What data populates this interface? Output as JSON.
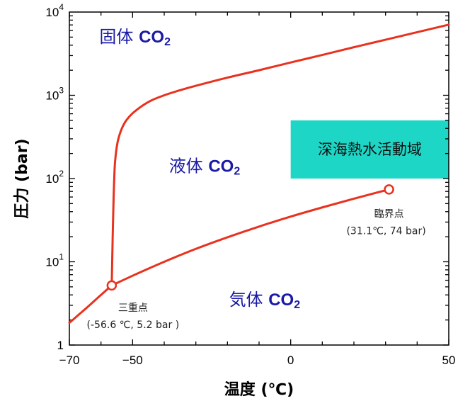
{
  "chart_data": {
    "type": "line",
    "xlabel": "温度 (℃)",
    "ylabel": "圧力 (bar)",
    "xlim": [
      -70,
      50
    ],
    "ylim": [
      1,
      10000
    ],
    "yscale": "log",
    "x_ticks": [
      {
        "value": -70,
        "label": "−70"
      },
      {
        "value": -50,
        "label": "−50"
      },
      {
        "value": 0,
        "label": "0"
      },
      {
        "value": 50,
        "label": "50"
      }
    ],
    "y_ticks": [
      {
        "value": 1,
        "base": "1",
        "exp": ""
      },
      {
        "value": 10,
        "base": "10",
        "exp": "1"
      },
      {
        "value": 100,
        "base": "10",
        "exp": "2"
      },
      {
        "value": 1000,
        "base": "10",
        "exp": "3"
      },
      {
        "value": 10000,
        "base": "10",
        "exp": "4"
      }
    ],
    "line_color": "#e8321e",
    "series": [
      {
        "points": [
          [
            -70,
            1.85
          ],
          [
            -65,
            2.7
          ],
          [
            -60,
            4.0
          ],
          [
            -56.6,
            5.2
          ]
        ]
      },
      {
        "points": [
          [
            -56.6,
            5.2
          ],
          [
            -50,
            6.8
          ],
          [
            -40,
            10.0
          ],
          [
            -30,
            14.3
          ],
          [
            -20,
            19.7
          ],
          [
            -10,
            26.5
          ],
          [
            0,
            34.9
          ],
          [
            10,
            45.0
          ],
          [
            20,
            57.3
          ],
          [
            31.1,
            74
          ]
        ]
      },
      {
        "points": [
          [
            -56.6,
            5.2
          ],
          [
            -56.3,
            20
          ],
          [
            -56.0,
            60
          ],
          [
            -55.6,
            150
          ],
          [
            -54.5,
            300
          ],
          [
            -52,
            500
          ],
          [
            -48,
            700
          ],
          [
            -44,
            870
          ],
          [
            -40,
            1000
          ],
          [
            -35,
            1150
          ],
          [
            -30,
            1300
          ],
          [
            -20,
            1630
          ],
          [
            -10,
            2000
          ],
          [
            0,
            2480
          ],
          [
            10,
            3050
          ],
          [
            20,
            3780
          ],
          [
            30,
            4650
          ],
          [
            40,
            5730
          ],
          [
            50,
            7050
          ]
        ]
      }
    ],
    "points": [
      {
        "name": "三重点",
        "x": -56.6,
        "y": 5.2,
        "label": "(-56.6 ℃, 5.2 bar )"
      },
      {
        "name": "臨界点",
        "x": 31.1,
        "y": 74,
        "label": "(31.1℃, 74 bar)"
      }
    ],
    "region": {
      "label": "深海熱水活動域",
      "x": [
        0,
        50
      ],
      "y": [
        100,
        500
      ],
      "color": "#1ed6c6"
    },
    "phase_labels": [
      {
        "name": "固体",
        "formula": "CO",
        "subscript": "2",
        "x": -60.5,
        "y": 4300
      },
      {
        "name": "液体",
        "formula": "CO",
        "subscript": "2",
        "x": -38.5,
        "y": 120
      },
      {
        "name": "気体",
        "formula": "CO",
        "subscript": "2",
        "x": -19.5,
        "y": 3.0
      }
    ]
  }
}
